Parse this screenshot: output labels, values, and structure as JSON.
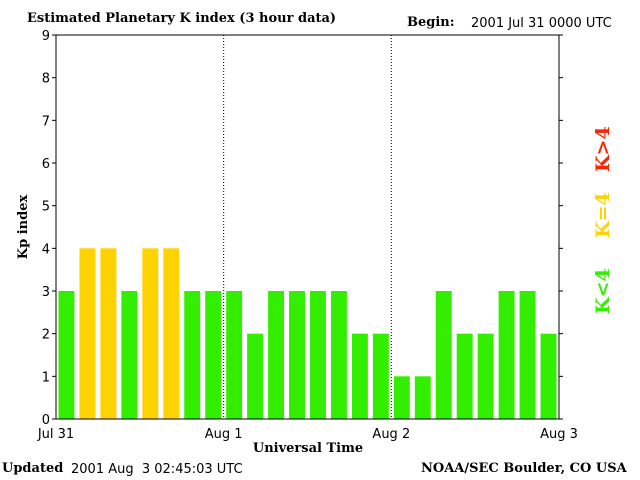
{
  "header": {
    "title": "Estimated Planetary K index (3 hour data)",
    "begin_label": "Begin:",
    "begin_value": "2001 Jul 31 0000 UTC"
  },
  "footer": {
    "updated_label": "Updated",
    "updated_value": "2001 Aug  3 02:45:03 UTC",
    "credit": "NOAA/SEC Boulder, CO USA"
  },
  "legend": {
    "low": {
      "label": "K<4",
      "color": "#33ee00"
    },
    "mid": {
      "label": "K=4",
      "color": "#ffd200"
    },
    "high": {
      "label": "K>4",
      "color": "#ff2200"
    }
  },
  "chart_data": {
    "type": "bar",
    "title": "Estimated Planetary K index (3 hour data)",
    "xlabel": "Universal Time",
    "ylabel": "Kp index",
    "ylim": [
      0,
      9
    ],
    "yticks": [
      "0",
      "1",
      "2",
      "3",
      "4",
      "5",
      "6",
      "7",
      "8",
      "9"
    ],
    "xticks": [
      "Jul 31",
      "Aug 1",
      "Aug 2",
      "Aug 3"
    ],
    "x_interval": "3 hour",
    "values": [
      3,
      4,
      4,
      3,
      4,
      4,
      3,
      3,
      3,
      2,
      3,
      3,
      3,
      3,
      2,
      2,
      1,
      1,
      3,
      2,
      2,
      3,
      3,
      2
    ],
    "colors": {
      "below_4": "#33ee00",
      "equal_4": "#ffd200",
      "above_4": "#ff2200"
    }
  }
}
